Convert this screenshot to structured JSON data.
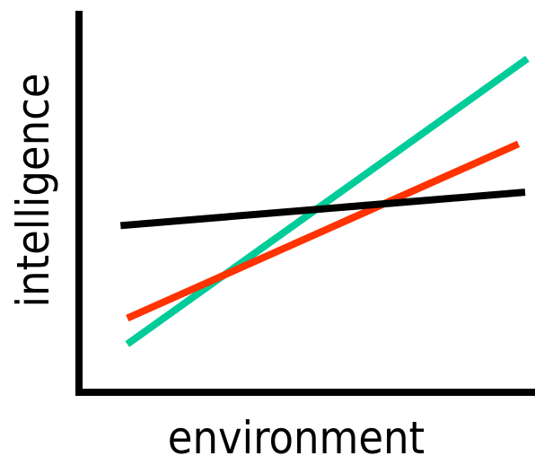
{
  "chart_data": {
    "type": "line",
    "xlabel": "environment",
    "ylabel": "intelligence",
    "xlim": [
      0,
      10
    ],
    "ylim": [
      0,
      10
    ],
    "grid": false,
    "axis_color": "#000000",
    "series": [
      {
        "color": "#00cc99",
        "x": [
          1,
          9.95
        ],
        "y": [
          1.2,
          8.9
        ]
      },
      {
        "color": "#ff3300",
        "x": [
          1,
          9.75
        ],
        "y": [
          1.9,
          6.6
        ]
      },
      {
        "color": "#000000",
        "x": [
          0.85,
          9.9
        ],
        "y": [
          4.4,
          5.3
        ]
      }
    ]
  }
}
